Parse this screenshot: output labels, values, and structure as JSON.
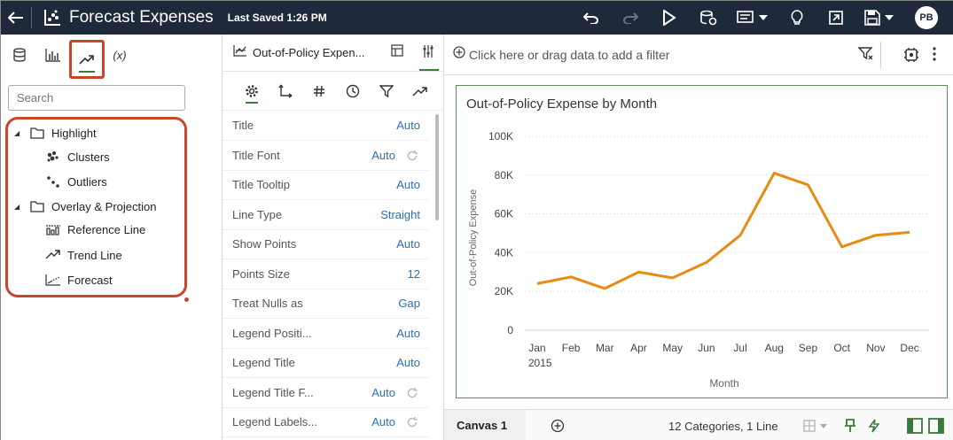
{
  "app": {
    "title": "Forecast Expenses",
    "last_saved": "Last Saved 1:26 PM",
    "user_initials": "PB"
  },
  "left_panel": {
    "search_placeholder": "Search",
    "tabs": [
      "data-icon",
      "visualizations-icon",
      "analytics-icon",
      "calculations-icon"
    ],
    "fx_label": "(x)",
    "tree": {
      "group1": "Highlight",
      "group1_items": [
        "Clusters",
        "Outliers"
      ],
      "group2": "Overlay & Projection",
      "group2_items": [
        "Reference Line",
        "Trend Line",
        "Forecast"
      ]
    }
  },
  "properties": {
    "viz_title": "Out-of-Policy Expen...",
    "rows": [
      {
        "label": "Title",
        "value": "Auto"
      },
      {
        "label": "Title Font",
        "value": "Auto"
      },
      {
        "label": "Title Tooltip",
        "value": "Auto"
      },
      {
        "label": "Line Type",
        "value": "Straight"
      },
      {
        "label": "Show Points",
        "value": "Auto"
      },
      {
        "label": "Points Size",
        "value": "12"
      },
      {
        "label": "Treat Nulls as",
        "value": "Gap"
      },
      {
        "label": "Legend Positi...",
        "value": "Auto"
      },
      {
        "label": "Legend Title",
        "value": "Auto"
      },
      {
        "label": "Legend Title F...",
        "value": "Auto"
      },
      {
        "label": "Legend Labels...",
        "value": "Auto"
      }
    ]
  },
  "filter": {
    "placeholder": "Click here or drag data to add a filter"
  },
  "canvas": {
    "tab_label": "Canvas 1",
    "info": "12 Categories, 1 Line"
  },
  "colors": {
    "topbar": "#1e2a3b",
    "accent_green": "#3a7a3a",
    "line": "#e88b14",
    "highlight_red": "#c8462c",
    "link_blue": "#2e6fa7"
  },
  "chart_data": {
    "type": "line",
    "title": "Out-of-Policy Expense by Month",
    "xlabel": "Month",
    "ylabel": "Out-of-Policy Expense",
    "categories": [
      "Jan",
      "Feb",
      "Mar",
      "Apr",
      "May",
      "Jun",
      "Jul",
      "Aug",
      "Sep",
      "Oct",
      "Nov",
      "Dec"
    ],
    "year_label": "2015",
    "y_ticks": [
      "0",
      "20K",
      "40K",
      "60K",
      "80K",
      "100K"
    ],
    "ylim": [
      0,
      100000
    ],
    "series": [
      {
        "values": [
          24000,
          27500,
          21500,
          30000,
          27000,
          35000,
          49000,
          81000,
          75000,
          43000,
          49000,
          50500
        ]
      }
    ],
    "grid": true
  }
}
